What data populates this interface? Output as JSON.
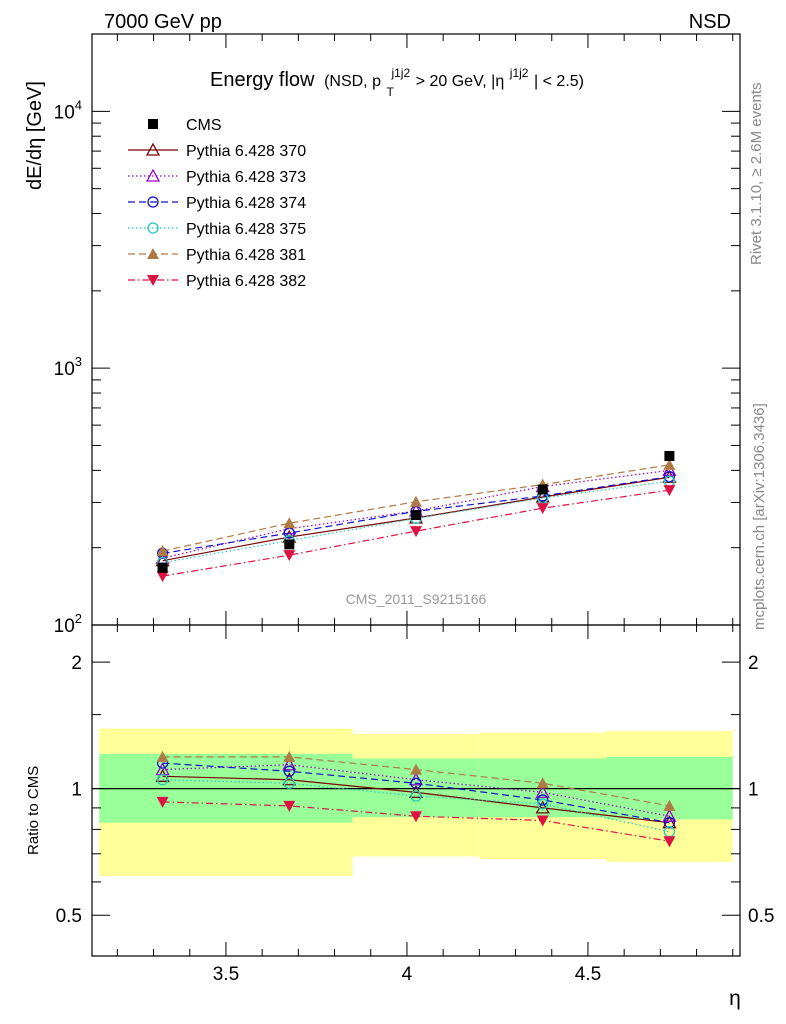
{
  "header": {
    "left": "7000 GeV pp",
    "right": "NSD"
  },
  "side_text": {
    "rivet": "Rivet 3.1.10, ≥ 2.6M events",
    "mcplots": "mcplots.cern.ch [arXiv:1306.3436]"
  },
  "watermark": "CMS_2011_S9215166",
  "colors": {
    "band_outer": "#ffff99",
    "band_inner": "#99ff99"
  },
  "chart_data": [
    {
      "type": "line",
      "title": "Energy flow",
      "title_sub": "(NSD, p_T^{j1j2} > 20 GeV, |η^{j1j2}| < 2.5)",
      "title_sub_parts": {
        "open": "(NSD, p",
        "sub_T": "T",
        "sup1": "j1j2",
        "mid": " > 20 GeV, |η",
        "sup2": "j1j2",
        "close": "| < 2.5)"
      },
      "ylabel": "dE/dη [GeV]",
      "xlabel": "η",
      "yscale": "log",
      "xlim": [
        3.13,
        4.92
      ],
      "ylim": [
        100,
        20000
      ],
      "y_tick_labels": [
        {
          "value": 100,
          "base": "10",
          "exp": "2"
        },
        {
          "value": 1000,
          "base": "10",
          "exp": "3"
        },
        {
          "value": 10000,
          "base": "10",
          "exp": "4"
        }
      ],
      "x": [
        3.325,
        3.675,
        4.025,
        4.375,
        4.725
      ],
      "data": {
        "name": "CMS",
        "values": [
          167,
          206,
          268,
          337,
          455
        ]
      },
      "series": [
        {
          "name": "Pythia 6.428 370",
          "color": "#7a0000",
          "marker": "triangle-open",
          "dash": "",
          "values": [
            178,
            220,
            261,
            315,
            376
          ]
        },
        {
          "name": "Pythia 6.428 373",
          "color": "#9900cc",
          "marker": "triangle-open",
          "dash": "1.5,2.5",
          "values": [
            182,
            237,
            278,
            346,
            400
          ]
        },
        {
          "name": "Pythia 6.428 374",
          "color": "#1010cc",
          "marker": "circle-open",
          "dash": "7,4",
          "values": [
            190,
            228,
            277,
            318,
            378
          ]
        },
        {
          "name": "Pythia 6.428 375",
          "color": "#22ccbb",
          "marker": "circle-open",
          "dash": "1.5,2.5",
          "values": [
            175,
            213,
            260,
            312,
            363
          ]
        },
        {
          "name": "Pythia 6.428 381",
          "color": "#b07a45",
          "marker": "triangle-filled",
          "dash": "7,4",
          "values": [
            194,
            249,
            302,
            352,
            420
          ]
        },
        {
          "name": "Pythia 6.428 382",
          "color": "#dd1144",
          "marker": "triangle-down-filled",
          "dash": "7,3,1.5,3",
          "values": [
            155,
            187,
            232,
            285,
            335
          ]
        }
      ]
    },
    {
      "type": "line",
      "ylabel": "Ratio to CMS",
      "xlabel": "η",
      "yscale": "log",
      "xlim": [
        3.13,
        4.92
      ],
      "ylim": [
        0.4,
        2.45
      ],
      "y_tick_labels": [
        "0.5",
        "1",
        "2"
      ],
      "x_tick_labels": [
        "3.5",
        "4",
        "4.5"
      ],
      "bands": [
        {
          "x": [
            3.15,
            3.85
          ],
          "inner": [
            0.83,
            1.21
          ],
          "outer": [
            0.62,
            1.39
          ]
        },
        {
          "x": [
            3.85,
            4.2
          ],
          "inner": [
            0.855,
            1.18
          ],
          "outer": [
            0.69,
            1.35
          ]
        },
        {
          "x": [
            4.2,
            4.55
          ],
          "inner": [
            0.855,
            1.18
          ],
          "outer": [
            0.68,
            1.36
          ]
        },
        {
          "x": [
            4.55,
            4.9
          ],
          "inner": [
            0.845,
            1.19
          ],
          "outer": [
            0.67,
            1.37
          ]
        }
      ],
      "series": [
        {
          "name": "Pythia 6.428 370",
          "values": [
            1.07,
            1.05,
            0.98,
            0.9,
            0.83
          ]
        },
        {
          "name": "Pythia 6.428 373",
          "values": [
            1.11,
            1.14,
            1.05,
            0.98,
            0.86
          ]
        },
        {
          "name": "Pythia 6.428 374",
          "values": [
            1.15,
            1.1,
            1.03,
            0.94,
            0.83
          ]
        },
        {
          "name": "Pythia 6.428 375",
          "values": [
            1.05,
            1.03,
            0.96,
            0.92,
            0.79
          ]
        },
        {
          "name": "Pythia 6.428 381",
          "values": [
            1.19,
            1.19,
            1.11,
            1.03,
            0.91
          ]
        },
        {
          "name": "Pythia 6.428 382",
          "values": [
            0.93,
            0.91,
            0.86,
            0.84,
            0.75
          ]
        }
      ]
    }
  ]
}
